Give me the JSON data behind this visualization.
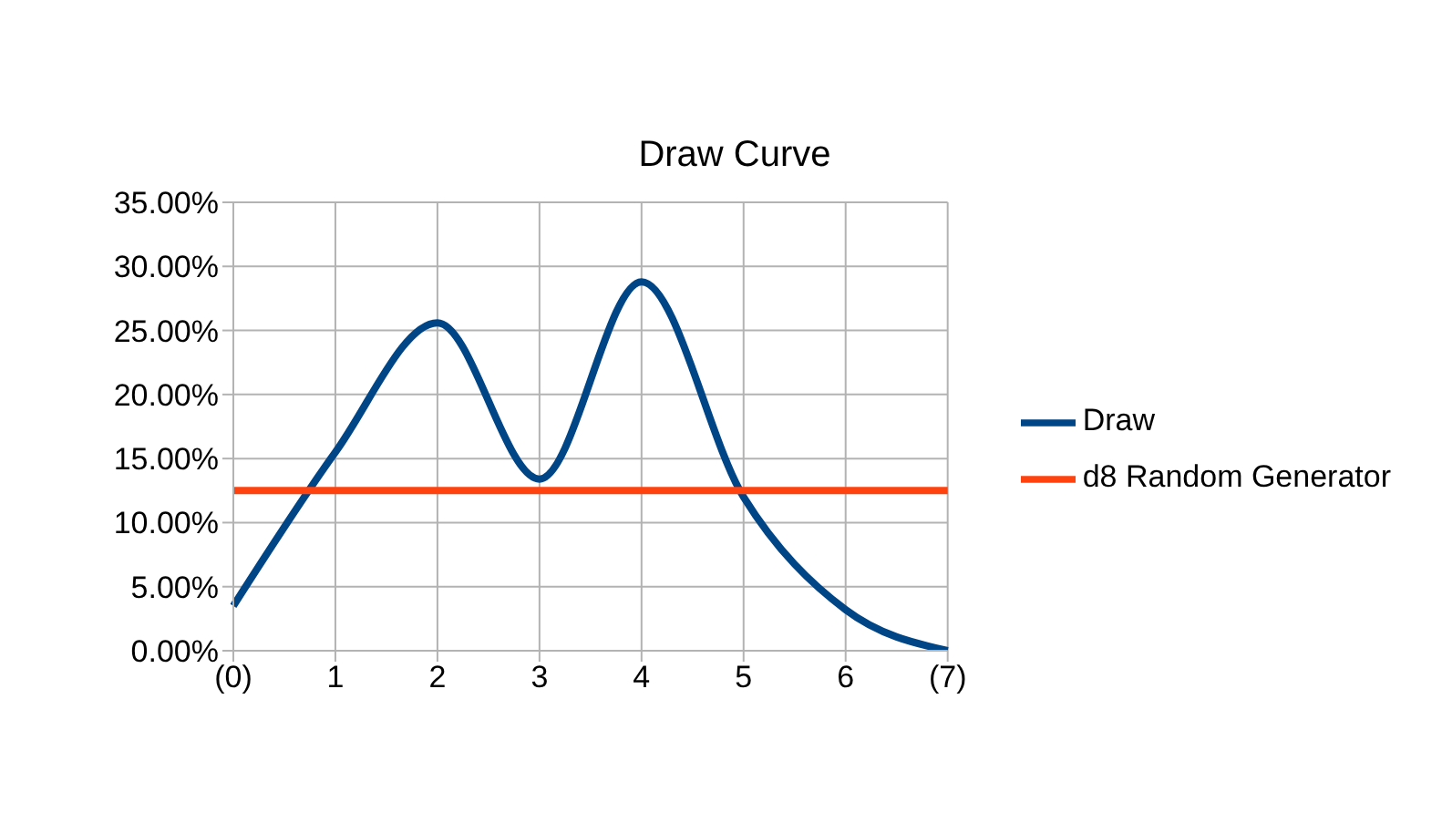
{
  "chart_data": {
    "type": "line",
    "title": "Draw Curve",
    "categories": [
      "(0)",
      "1",
      "2",
      "3",
      "4",
      "5",
      "6",
      "(7)"
    ],
    "series": [
      {
        "name": "Draw",
        "color": "#004586",
        "values": [
          3.5,
          15.5,
          25.6,
          13.4,
          28.8,
          12,
          3.2,
          0
        ]
      },
      {
        "name": "d8 Random Generator",
        "color": "#ff420e",
        "values": [
          12.5,
          12.5,
          12.5,
          12.5,
          12.5,
          12.5,
          12.5,
          12.5
        ]
      }
    ],
    "ylim": [
      0,
      35
    ],
    "yticks": [
      {
        "value": 0,
        "label": "0.00%"
      },
      {
        "value": 5,
        "label": "5.00%"
      },
      {
        "value": 10,
        "label": "10.00%"
      },
      {
        "value": 15,
        "label": "15.00%"
      },
      {
        "value": 20,
        "label": "20.00%"
      },
      {
        "value": 25,
        "label": "25.00%"
      },
      {
        "value": 30,
        "label": "30.00%"
      },
      {
        "value": 35,
        "label": "35.00%"
      }
    ],
    "grid": true,
    "legend": "right",
    "marker": "none",
    "line_style": "solid"
  }
}
